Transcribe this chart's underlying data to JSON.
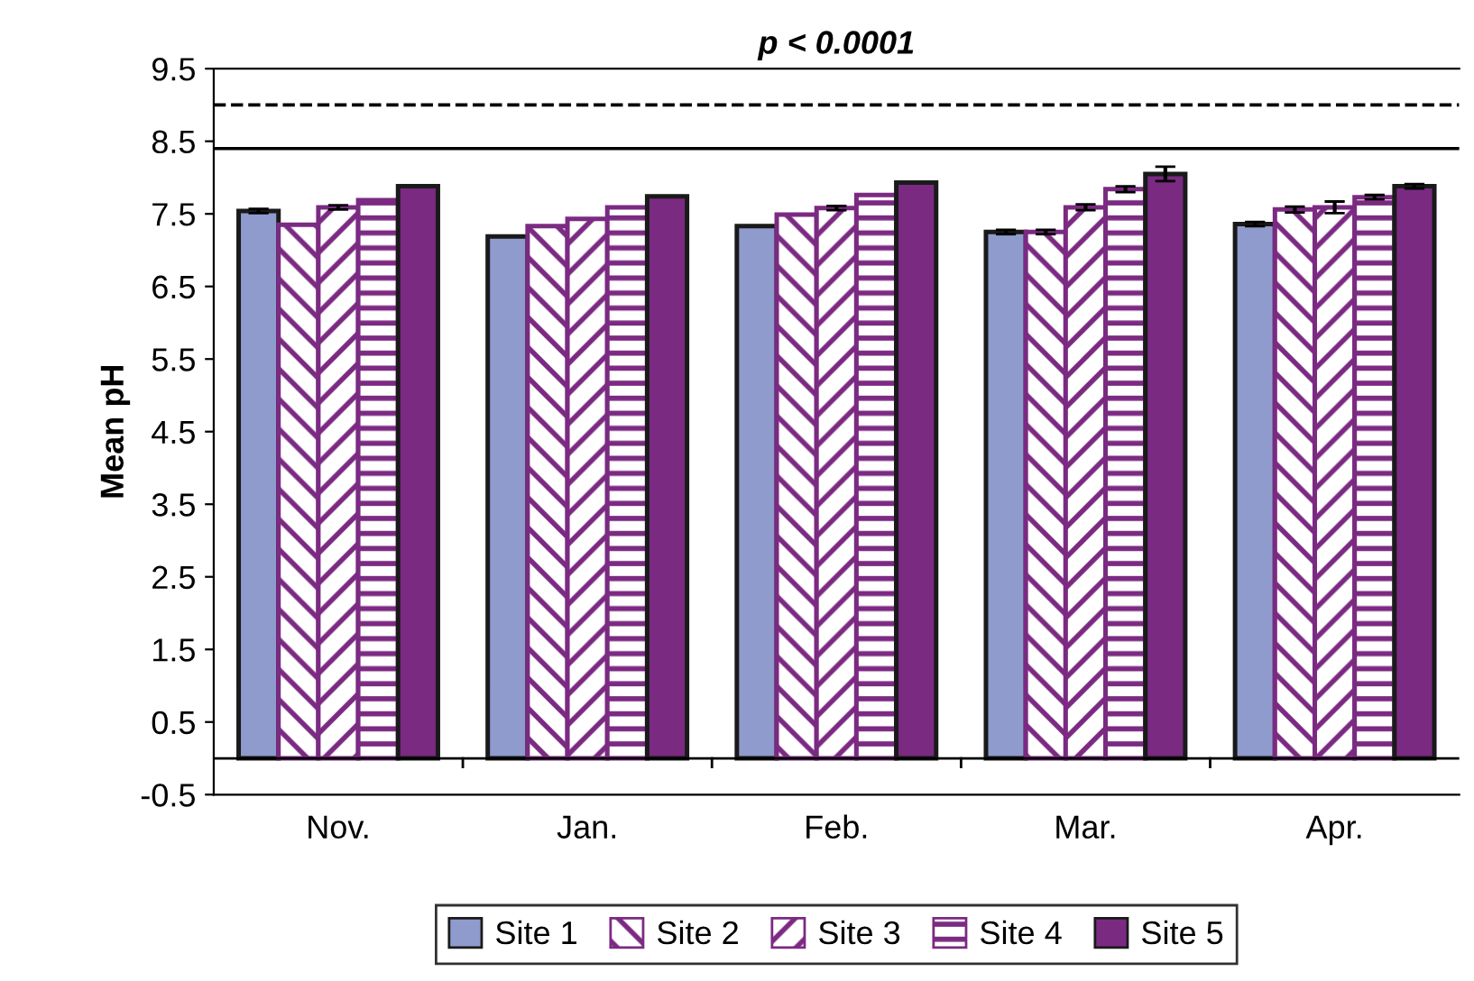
{
  "chart_data": {
    "type": "bar",
    "title": "p < 0.0001",
    "ylabel": "Mean pH",
    "categories": [
      "Nov.",
      "Jan.",
      "Feb.",
      "Mar.",
      "Apr."
    ],
    "series": [
      {
        "name": "Site 1",
        "color": "#8f9bcc",
        "values": [
          7.54,
          7.19,
          7.33,
          7.25,
          7.36
        ],
        "errors": [
          0.03,
          null,
          null,
          0.03,
          0.03
        ]
      },
      {
        "name": "Site 2",
        "color": "#7b2a82",
        "values": [
          7.35,
          7.33,
          7.49,
          7.25,
          7.56
        ],
        "errors": [
          null,
          null,
          null,
          0.03,
          0.04
        ]
      },
      {
        "name": "Site 3",
        "color": "#7b2a82",
        "values": [
          7.59,
          7.43,
          7.58,
          7.59,
          7.59
        ],
        "errors": [
          0.03,
          null,
          0.03,
          0.04,
          0.08
        ]
      },
      {
        "name": "Site 4",
        "color": "#7b2a82",
        "values": [
          7.69,
          7.59,
          7.76,
          7.84,
          7.73
        ],
        "errors": [
          null,
          null,
          null,
          0.04,
          0.03
        ]
      },
      {
        "name": "Site 5",
        "color": "#7b2a82",
        "values": [
          7.88,
          7.74,
          7.93,
          8.05,
          7.88
        ],
        "errors": [
          null,
          null,
          null,
          0.1,
          0.03
        ]
      }
    ],
    "ylim": [
      -0.5,
      9.5
    ],
    "yticks": [
      -0.5,
      0.5,
      1.5,
      2.5,
      3.5,
      4.5,
      5.5,
      6.5,
      7.5,
      8.5,
      9.5
    ],
    "ref_lines": [
      {
        "axis": "y",
        "value": 9.0,
        "label": null,
        "line_style": "dashed"
      },
      {
        "axis": "y",
        "value": 8.4,
        "label": null,
        "line_style": "solid"
      }
    ],
    "grid": false,
    "legend": "bottom"
  }
}
